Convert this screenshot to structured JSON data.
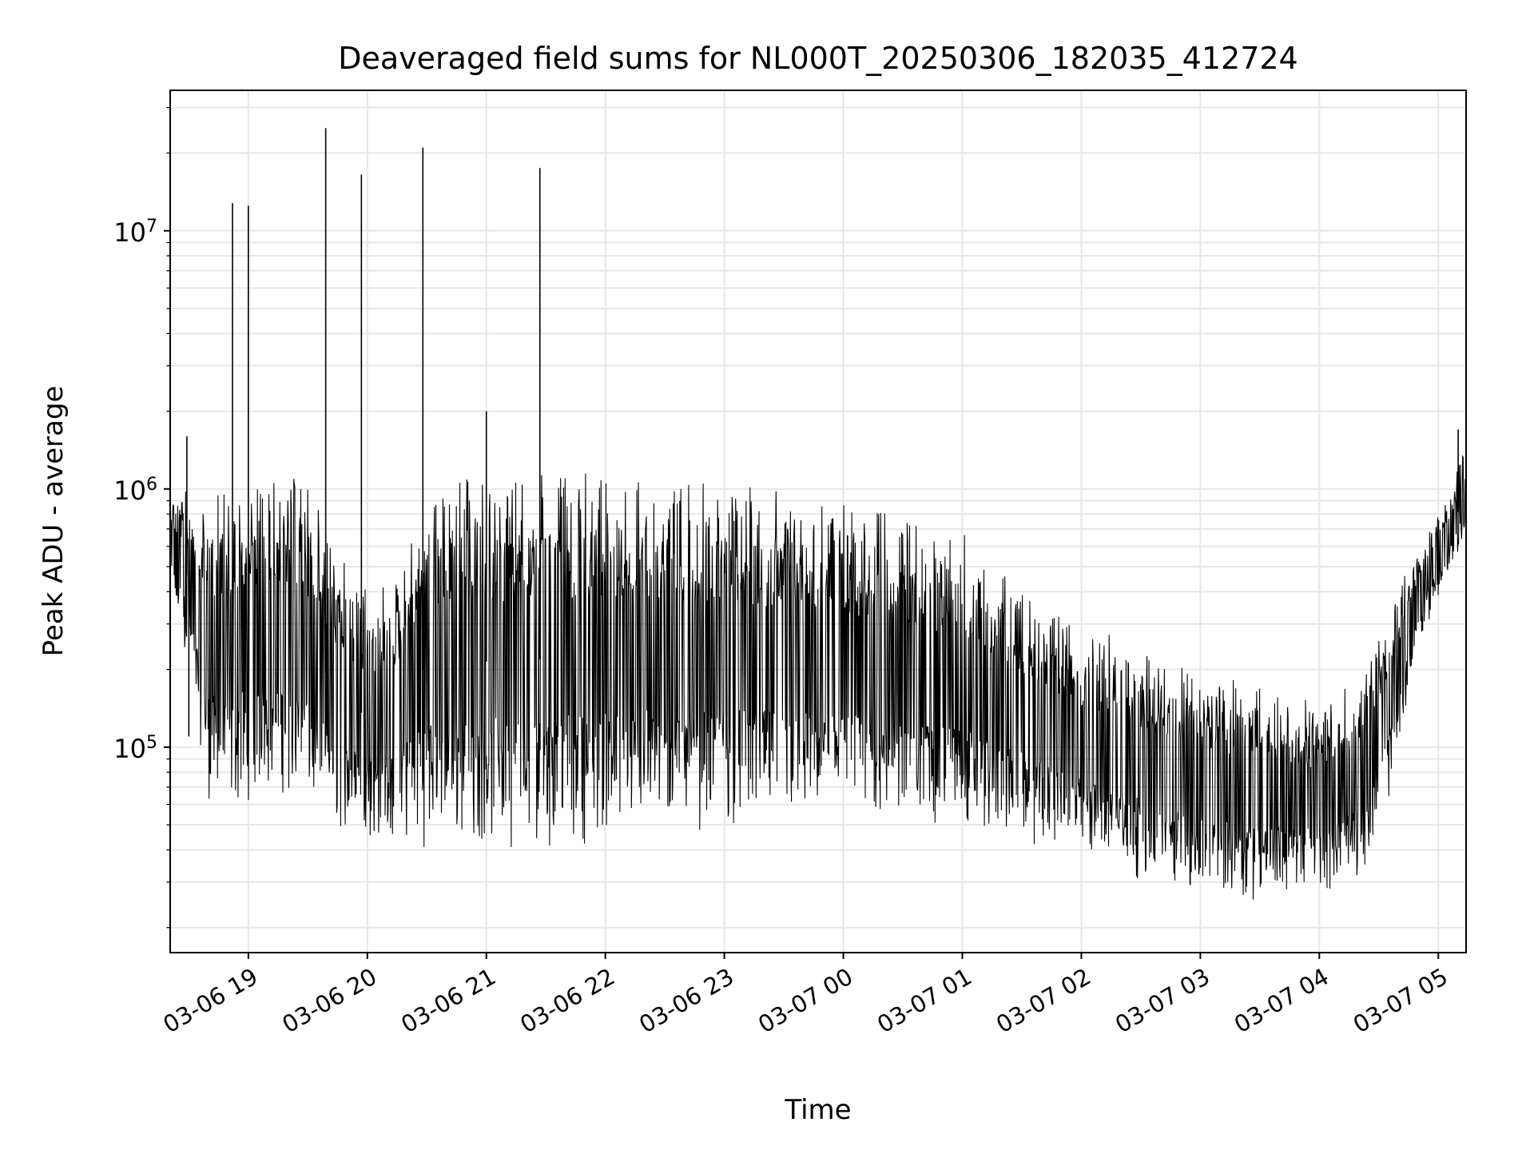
{
  "chart_data": {
    "type": "line",
    "title": "Deaveraged field sums for NL000T_20250306_182035_412724",
    "xlabel": "Time",
    "ylabel": "Peak ADU - average",
    "yscale": "log",
    "ylim": [
      16000,
      35000000
    ],
    "xlim": [
      "2025-03-06 18:20:35",
      "2025-03-07 05:14:00"
    ],
    "grid": true,
    "line_color": "#000000",
    "x_ticks": [
      {
        "at": "2025-03-06 19:00",
        "label": "03-06 19"
      },
      {
        "at": "2025-03-06 20:00",
        "label": "03-06 20"
      },
      {
        "at": "2025-03-06 21:00",
        "label": "03-06 21"
      },
      {
        "at": "2025-03-06 22:00",
        "label": "03-06 22"
      },
      {
        "at": "2025-03-06 23:00",
        "label": "03-06 23"
      },
      {
        "at": "2025-03-07 00:00",
        "label": "03-07 00"
      },
      {
        "at": "2025-03-07 01:00",
        "label": "03-07 01"
      },
      {
        "at": "2025-03-07 02:00",
        "label": "03-07 02"
      },
      {
        "at": "2025-03-07 03:00",
        "label": "03-07 03"
      },
      {
        "at": "2025-03-07 04:00",
        "label": "03-07 04"
      },
      {
        "at": "2025-03-07 05:00",
        "label": "03-07 05"
      }
    ],
    "y_ticks": [
      {
        "value": 100000,
        "base": "10",
        "exp": "5"
      },
      {
        "value": 1000000,
        "base": "10",
        "exp": "6"
      },
      {
        "value": 10000000,
        "base": "10",
        "exp": "7"
      }
    ],
    "envelope": [
      {
        "t": "2025-03-06 18:20:35",
        "low": 380000,
        "high": 1000000
      },
      {
        "t": "2025-03-06 18:30",
        "low": 200000,
        "high": 1000000
      },
      {
        "t": "2025-03-06 18:40",
        "low": 60000,
        "high": 1050000
      },
      {
        "t": "2025-03-06 18:50",
        "low": 50000,
        "high": 1100000
      },
      {
        "t": "2025-03-06 19:00",
        "low": 60000,
        "high": 1200000
      },
      {
        "t": "2025-03-06 19:15",
        "low": 65000,
        "high": 1200000
      },
      {
        "t": "2025-03-06 19:30",
        "low": 55000,
        "high": 1100000
      },
      {
        "t": "2025-03-06 19:45",
        "low": 45000,
        "high": 600000
      },
      {
        "t": "2025-03-06 20:00",
        "low": 42000,
        "high": 400000
      },
      {
        "t": "2025-03-06 20:15",
        "low": 40000,
        "high": 500000
      },
      {
        "t": "2025-03-06 20:30",
        "low": 40000,
        "high": 1100000
      },
      {
        "t": "2025-03-06 21:00",
        "low": 40000,
        "high": 1150000
      },
      {
        "t": "2025-03-06 21:30",
        "low": 40000,
        "high": 1200000
      },
      {
        "t": "2025-03-06 22:00",
        "low": 42000,
        "high": 1200000
      },
      {
        "t": "2025-03-06 22:30",
        "low": 45000,
        "high": 1150000
      },
      {
        "t": "2025-03-06 23:00",
        "low": 47000,
        "high": 1100000
      },
      {
        "t": "2025-03-06 23:30",
        "low": 48000,
        "high": 1000000
      },
      {
        "t": "2025-03-07 00:00",
        "low": 48000,
        "high": 900000
      },
      {
        "t": "2025-03-07 00:30",
        "low": 48000,
        "high": 800000
      },
      {
        "t": "2025-03-07 01:00",
        "low": 46000,
        "high": 700000
      },
      {
        "t": "2025-03-07 01:30",
        "low": 42000,
        "high": 450000
      },
      {
        "t": "2025-03-07 02:00",
        "low": 36000,
        "high": 300000
      },
      {
        "t": "2025-03-07 02:30",
        "low": 30000,
        "high": 250000
      },
      {
        "t": "2025-03-07 03:00",
        "low": 26000,
        "high": 200000
      },
      {
        "t": "2025-03-07 03:30",
        "low": 25000,
        "high": 180000
      },
      {
        "t": "2025-03-07 04:00",
        "low": 27000,
        "high": 150000
      },
      {
        "t": "2025-03-07 04:20",
        "low": 30000,
        "high": 200000
      },
      {
        "t": "2025-03-07 04:35",
        "low": 60000,
        "high": 350000
      },
      {
        "t": "2025-03-07 04:50",
        "low": 250000,
        "high": 600000
      },
      {
        "t": "2025-03-07 05:05",
        "low": 450000,
        "high": 1000000
      },
      {
        "t": "2025-03-07 05:14",
        "low": 600000,
        "high": 1500000
      }
    ],
    "spikes": [
      {
        "t": "2025-03-06 18:52",
        "value": 12800000
      },
      {
        "t": "2025-03-06 19:00",
        "value": 12500000
      },
      {
        "t": "2025-03-06 19:39",
        "value": 25000000
      },
      {
        "t": "2025-03-06 19:57",
        "value": 16500000
      },
      {
        "t": "2025-03-06 20:28",
        "value": 21000000
      },
      {
        "t": "2025-03-06 21:00",
        "value": 2000000
      },
      {
        "t": "2025-03-06 21:27",
        "value": 17500000
      },
      {
        "t": "2025-03-06 18:29",
        "value": 1600000
      },
      {
        "t": "2025-03-07 05:10",
        "value": 1700000
      },
      {
        "t": "2025-03-06 18:30",
        "value": 110000
      }
    ]
  }
}
